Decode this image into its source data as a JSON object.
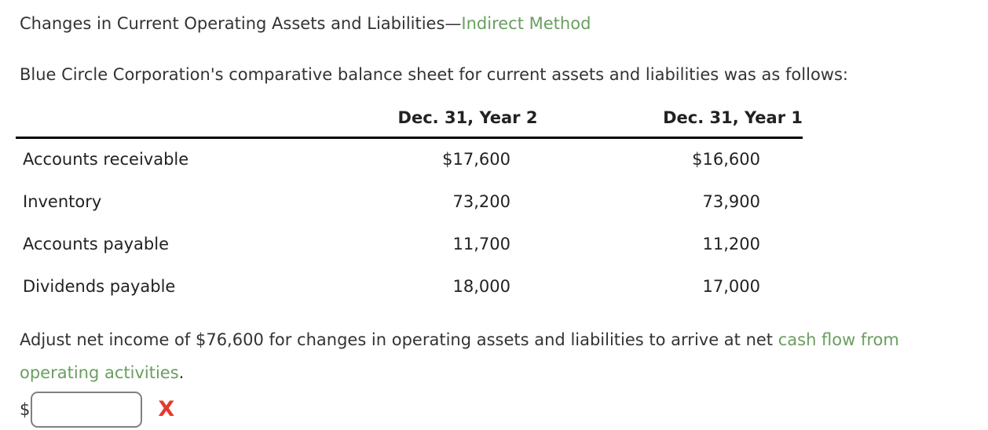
{
  "colors": {
    "text": "#333333",
    "green_highlight": "#6a9e60",
    "incorrect_red": "#e6392d",
    "input_border": "#808080",
    "table_rule": "#000000"
  },
  "title": {
    "prefix": "Changes in Current Operating Assets and Liabilities—",
    "highlight": "Indirect Method"
  },
  "intro": "Blue Circle Corporation's comparative balance sheet for current assets and liabilities was as follows:",
  "table": {
    "headers": {
      "year2": "Dec. 31, Year 2",
      "year1": "Dec. 31, Year 1"
    },
    "rows": [
      {
        "label": "Accounts receivable",
        "year2": "$17,600",
        "year1": "$16,600"
      },
      {
        "label": "Inventory",
        "year2": "73,200",
        "year1": "73,900"
      },
      {
        "label": "Accounts payable",
        "year2": "11,700",
        "year1": "11,200"
      },
      {
        "label": "Dividends payable",
        "year2": "18,000",
        "year1": "17,000"
      }
    ]
  },
  "instruction": {
    "prefix": "Adjust net income of $76,600 for changes in operating assets and liabilities to arrive at net ",
    "highlight": "cash flow from operating activities",
    "suffix": "."
  },
  "answer": {
    "currency_symbol": "$",
    "value": "",
    "feedback_glyph": "X"
  }
}
